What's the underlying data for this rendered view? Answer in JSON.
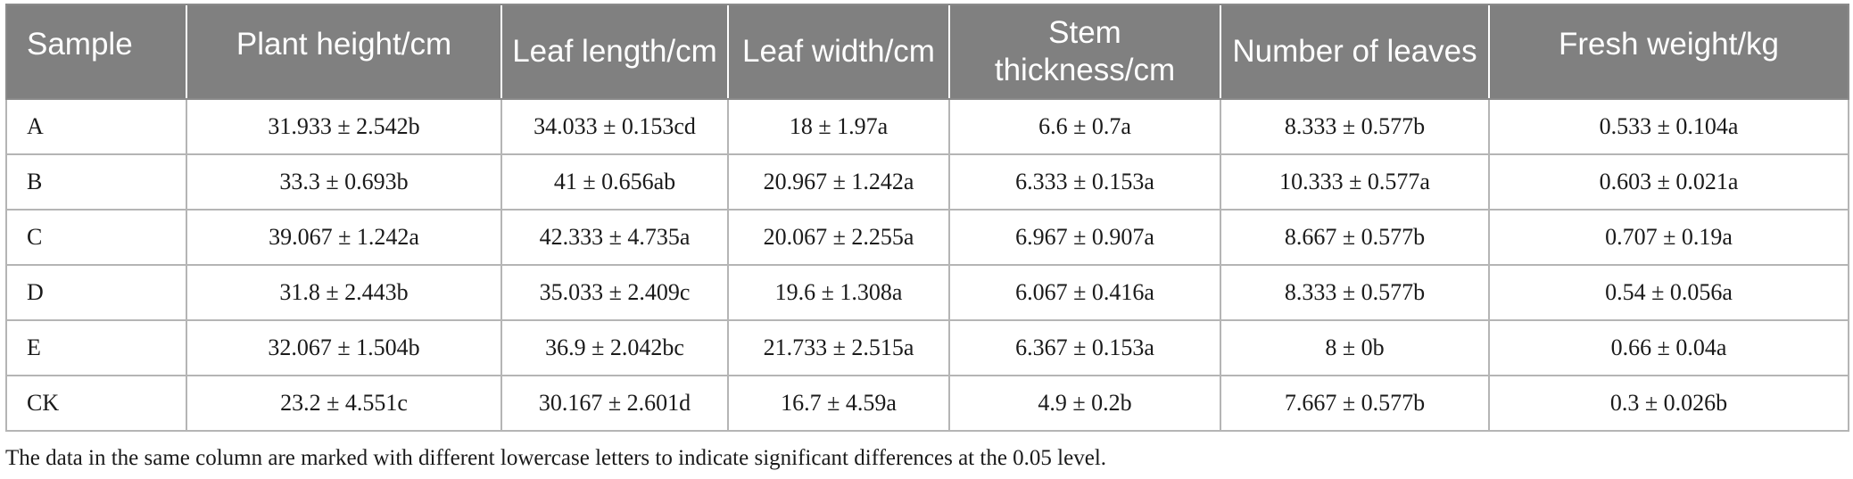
{
  "table": {
    "headers": [
      "Sample",
      "Plant height/cm",
      "Leaf length/cm",
      "Leaf width/cm",
      "Stem thickness/cm",
      "Number of leaves",
      "Fresh weight/kg"
    ],
    "rows": [
      [
        "A",
        "31.933 ± 2.542b",
        "34.033 ± 0.153cd",
        "18 ± 1.97a",
        "6.6 ± 0.7a",
        "8.333 ± 0.577b",
        "0.533 ± 0.104a"
      ],
      [
        "B",
        "33.3 ± 0.693b",
        "41 ± 0.656ab",
        "20.967 ± 1.242a",
        "6.333 ± 0.153a",
        "10.333 ± 0.577a",
        "0.603 ± 0.021a"
      ],
      [
        "C",
        "39.067 ± 1.242a",
        "42.333 ± 4.735a",
        "20.067 ± 2.255a",
        "6.967 ± 0.907a",
        "8.667 ± 0.577b",
        "0.707 ± 0.19a"
      ],
      [
        "D",
        "31.8 ± 2.443b",
        "35.033 ± 2.409c",
        "19.6 ± 1.308a",
        "6.067 ± 0.416a",
        "8.333 ± 0.577b",
        "0.54 ± 0.056a"
      ],
      [
        "E",
        "32.067 ± 1.504b",
        "36.9 ± 2.042bc",
        "21.733 ± 2.515a",
        "6.367 ± 0.153a",
        "8 ± 0b",
        "0.66 ± 0.04a"
      ],
      [
        "CK",
        "23.2 ± 4.551c",
        "30.167 ± 2.601d",
        "16.7 ± 4.59a",
        "4.9 ± 0.2b",
        "7.667 ± 0.577b",
        "0.3 ± 0.026b"
      ]
    ]
  },
  "footnote": "The data in the same column are marked with different lowercase letters to indicate significant differences at the 0.05 level.",
  "colors": {
    "header_bg": "#808080",
    "header_text": "#ffffff",
    "grid": "#b5b5b5",
    "body_text": "#1a1a1a"
  }
}
